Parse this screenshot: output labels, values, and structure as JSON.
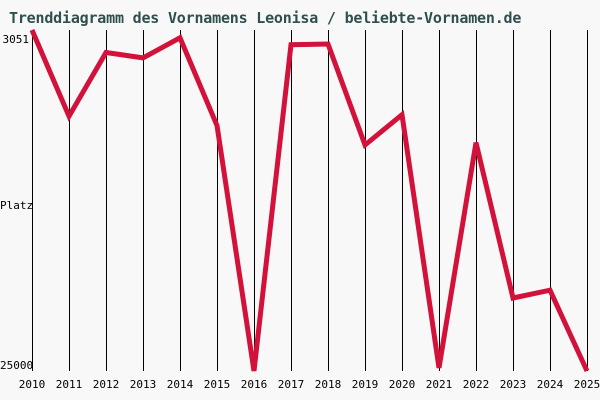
{
  "page": {
    "background_color": "#f8f8f8",
    "title_color": "#2f4f4f"
  },
  "chart_data": {
    "type": "line",
    "title": "Trenddiagramm des Vornamens Leonisa / beliebte-Vornamen.de",
    "categories": [
      "2010",
      "2011",
      "2012",
      "2013",
      "2014",
      "2015",
      "2016",
      "2017",
      "2018",
      "2019",
      "2020",
      "2021",
      "2022",
      "2023",
      "2024",
      "2025"
    ],
    "values": [
      3051,
      8600,
      4500,
      4850,
      3550,
      9200,
      25000,
      4000,
      3950,
      10450,
      8500,
      24800,
      10300,
      20300,
      19800,
      25000
    ],
    "xlabel": "",
    "ylabel": "Platz",
    "ylim": [
      3051,
      25000
    ],
    "y_axis": {
      "top_label": "3051",
      "title": "Platz",
      "bottom_label": "25000",
      "inverted": true
    },
    "grid": "vertical-only",
    "legend": "none",
    "line_color": "#d2123a",
    "gridline_color": "#000000",
    "label_color": "#000000"
  }
}
